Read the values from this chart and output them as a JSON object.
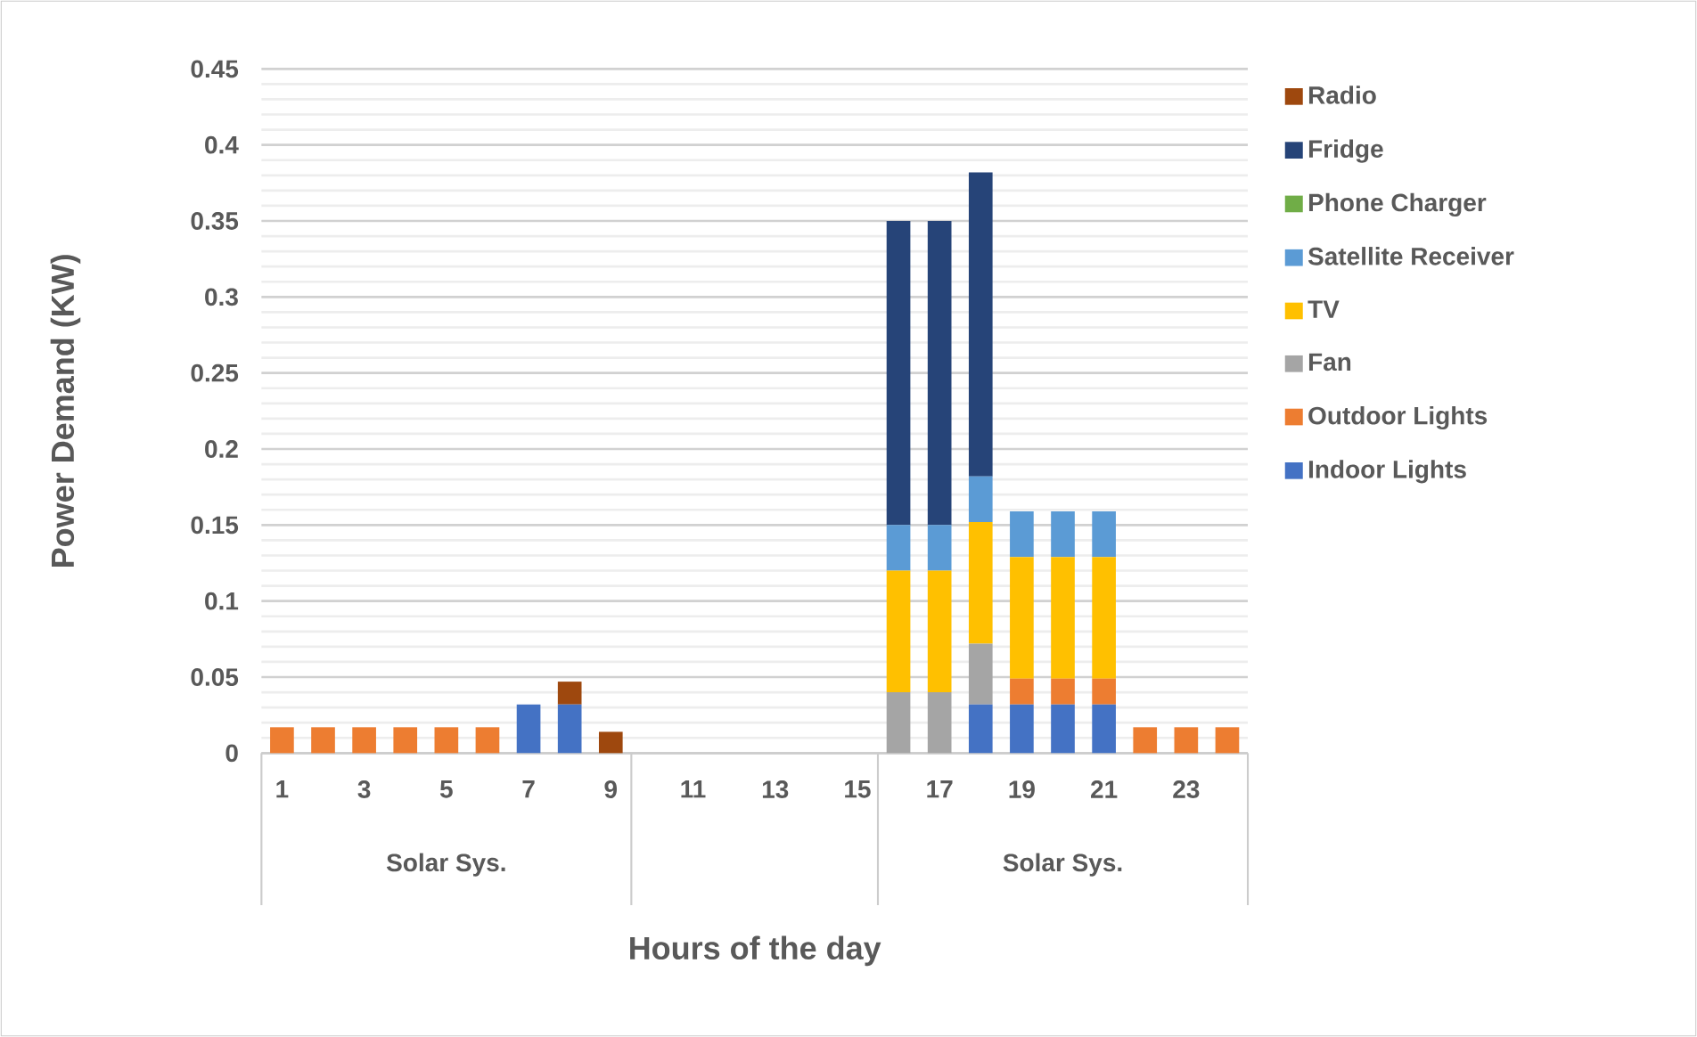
{
  "chart_data": {
    "type": "bar",
    "stacked": true,
    "ylabel": "Power Demand (KW)",
    "xlabel": "Hours of the day",
    "categories": [
      "1",
      null,
      "3",
      null,
      "5",
      null,
      "7",
      null,
      "9",
      null,
      "11",
      null,
      "13",
      null,
      "15",
      null,
      "17",
      null,
      "19",
      null,
      "21",
      null,
      "23",
      null
    ],
    "series": [
      {
        "name": "Indoor Lights",
        "color": "#4472c4",
        "values": [
          null,
          null,
          null,
          null,
          null,
          null,
          0.032,
          0.032,
          null,
          null,
          null,
          null,
          null,
          null,
          null,
          null,
          null,
          0.032,
          0.032,
          0.032,
          0.032,
          null,
          null,
          null
        ]
      },
      {
        "name": "Outdoor Lights",
        "color": "#ed7d31",
        "values": [
          0.017,
          0.017,
          0.017,
          0.017,
          0.017,
          0.017,
          null,
          null,
          null,
          null,
          null,
          null,
          null,
          null,
          null,
          null,
          null,
          null,
          0.017,
          0.017,
          0.017,
          0.017,
          0.017,
          0.017
        ]
      },
      {
        "name": "Fan",
        "color": "#a5a5a5",
        "values": [
          null,
          null,
          null,
          null,
          null,
          null,
          null,
          null,
          null,
          null,
          null,
          null,
          null,
          null,
          null,
          0.04,
          0.04,
          0.04,
          null,
          null,
          null,
          null,
          null,
          null
        ]
      },
      {
        "name": "TV",
        "color": "#ffc000",
        "values": [
          null,
          null,
          null,
          null,
          null,
          null,
          null,
          null,
          null,
          null,
          null,
          null,
          null,
          null,
          null,
          0.08,
          0.08,
          0.08,
          0.08,
          0.08,
          0.08,
          null,
          null,
          null
        ]
      },
      {
        "name": "Satellite Receiver",
        "color": "#5b9bd5",
        "values": [
          null,
          null,
          null,
          null,
          null,
          null,
          null,
          null,
          null,
          null,
          null,
          null,
          null,
          null,
          null,
          0.03,
          0.03,
          0.03,
          0.03,
          0.03,
          0.03,
          null,
          null,
          null
        ]
      },
      {
        "name": "Phone Charger",
        "color": "#70ad47",
        "values": [
          null,
          null,
          null,
          null,
          null,
          null,
          null,
          null,
          null,
          null,
          null,
          null,
          null,
          null,
          null,
          null,
          null,
          null,
          null,
          null,
          null,
          null,
          null,
          null
        ]
      },
      {
        "name": "Fridge",
        "color": "#264478",
        "values": [
          null,
          null,
          null,
          null,
          null,
          null,
          null,
          null,
          null,
          null,
          null,
          null,
          null,
          null,
          null,
          0.2,
          0.2,
          0.2,
          null,
          null,
          null,
          null,
          null,
          null
        ]
      },
      {
        "name": "Radio",
        "color": "#9e480e",
        "values": [
          null,
          null,
          null,
          null,
          null,
          null,
          null,
          0.015,
          0.014,
          null,
          null,
          null,
          null,
          null,
          null,
          null,
          null,
          null,
          null,
          null,
          null,
          null,
          null,
          null
        ]
      }
    ],
    "ylim": [
      0,
      0.45
    ],
    "yticks": [
      0,
      0.05,
      0.1,
      0.15,
      0.2,
      0.25,
      0.3,
      0.35,
      0.4,
      0.45
    ],
    "grid": "y",
    "legend": "right",
    "annotations": [
      "Solar Sys.",
      "Solar Sys."
    ]
  }
}
